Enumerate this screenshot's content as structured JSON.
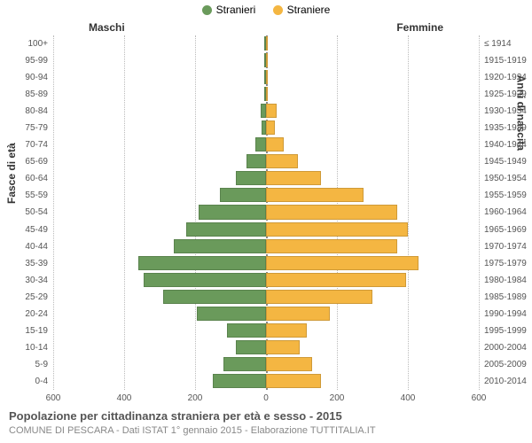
{
  "chart": {
    "type": "population-pyramid",
    "legend": [
      {
        "label": "Stranieri",
        "color": "#6a9a5b"
      },
      {
        "label": "Straniere",
        "color": "#f4b642"
      }
    ],
    "column_headers": {
      "left": "Maschi",
      "right": "Femmine"
    },
    "y_left_title": "Fasce di età",
    "y_right_title": "Anni di nascita",
    "xlim": 600,
    "xticks": [
      -600,
      -400,
      -200,
      0,
      200,
      400,
      600
    ],
    "xtick_labels": [
      "600",
      "400",
      "200",
      "0",
      "200",
      "400",
      "600"
    ],
    "grid_color": "#bbbbbb",
    "male_color": "#6a9a5b",
    "female_color": "#f4b642",
    "background": "#ffffff",
    "rows": [
      {
        "age": "100+",
        "birth": "≤ 1914",
        "m": 0,
        "f": 0
      },
      {
        "age": "95-99",
        "birth": "1915-1919",
        "m": 0,
        "f": 0
      },
      {
        "age": "90-94",
        "birth": "1920-1924",
        "m": 0,
        "f": 2
      },
      {
        "age": "85-89",
        "birth": "1925-1929",
        "m": 2,
        "f": 3
      },
      {
        "age": "80-84",
        "birth": "1930-1934",
        "m": 15,
        "f": 30
      },
      {
        "age": "75-79",
        "birth": "1935-1939",
        "m": 12,
        "f": 25
      },
      {
        "age": "70-74",
        "birth": "1940-1944",
        "m": 30,
        "f": 50
      },
      {
        "age": "65-69",
        "birth": "1945-1949",
        "m": 55,
        "f": 90
      },
      {
        "age": "60-64",
        "birth": "1950-1954",
        "m": 85,
        "f": 155
      },
      {
        "age": "55-59",
        "birth": "1955-1959",
        "m": 130,
        "f": 275
      },
      {
        "age": "50-54",
        "birth": "1960-1964",
        "m": 190,
        "f": 370
      },
      {
        "age": "45-49",
        "birth": "1965-1969",
        "m": 225,
        "f": 400
      },
      {
        "age": "40-44",
        "birth": "1970-1974",
        "m": 260,
        "f": 370
      },
      {
        "age": "35-39",
        "birth": "1975-1979",
        "m": 360,
        "f": 430
      },
      {
        "age": "30-34",
        "birth": "1980-1984",
        "m": 345,
        "f": 395
      },
      {
        "age": "25-29",
        "birth": "1985-1989",
        "m": 290,
        "f": 300
      },
      {
        "age": "20-24",
        "birth": "1990-1994",
        "m": 195,
        "f": 180
      },
      {
        "age": "15-19",
        "birth": "1995-1999",
        "m": 110,
        "f": 115
      },
      {
        "age": "10-14",
        "birth": "2000-2004",
        "m": 85,
        "f": 95
      },
      {
        "age": "5-9",
        "birth": "2005-2009",
        "m": 120,
        "f": 130
      },
      {
        "age": "0-4",
        "birth": "2010-2014",
        "m": 150,
        "f": 155
      }
    ],
    "title": "Popolazione per cittadinanza straniera per età e sesso - 2015",
    "subtitle": "COMUNE DI PESCARA - Dati ISTAT 1° gennaio 2015 - Elaborazione TUTTITALIA.IT",
    "title_color": "#555555",
    "subtitle_color": "#888888",
    "label_fontsize": 10,
    "title_fontsize": 13
  }
}
